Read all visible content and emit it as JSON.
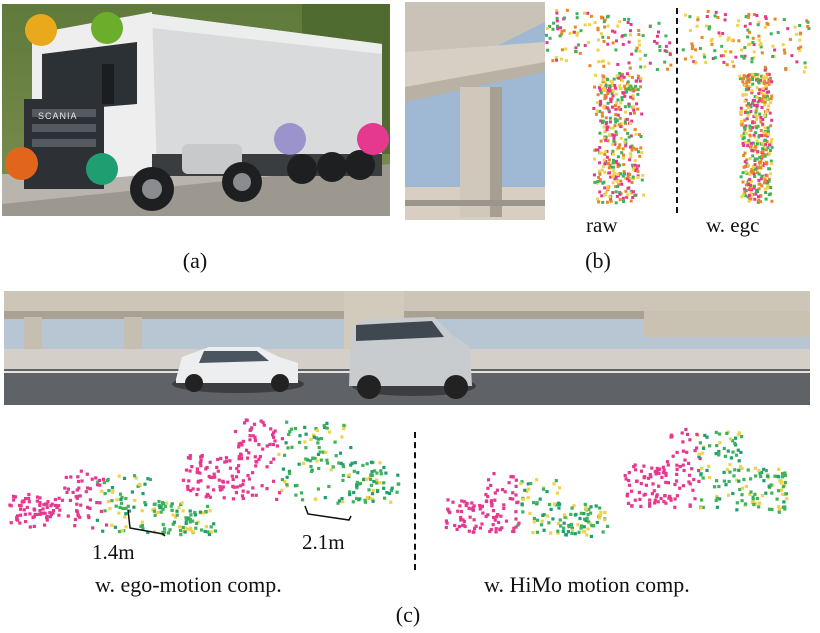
{
  "panel_a": {
    "caption": "(a)",
    "truck_brand": "SCANIA",
    "sensor_colors": [
      "#e8a91c",
      "#6aae2b",
      "#e2651c",
      "#1f9e72",
      "#8f86c9",
      "#e5398f"
    ]
  },
  "panel_b": {
    "caption": "(b)",
    "label_raw": "raw",
    "label_egc": "w. egc"
  },
  "panel_c": {
    "caption": "(c)",
    "label_ego": "w. ego-motion comp.",
    "label_himo": "w. HiMo motion comp.",
    "dim_small": "1.4m",
    "dim_large": "2.1m"
  },
  "colors": {
    "point_pink": "#e5398f",
    "point_green": "#3fb35a",
    "point_yellow": "#f0d34a",
    "point_orange": "#e8862a",
    "point_teal": "#1f9e72"
  }
}
